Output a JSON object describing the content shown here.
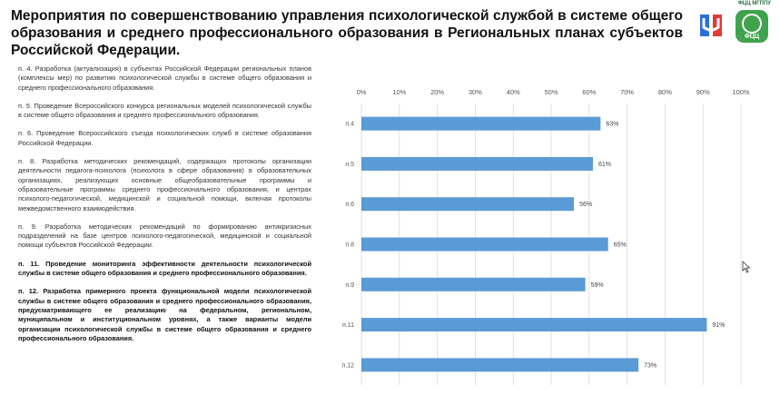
{
  "header": {
    "title": "Мероприятия по совершенствованию управления психологической службой в системе общего образования и среднего профессионального образования в Региональных планах субъектов Российской Федерации.",
    "logo_caption": "ФЦЦ МГППУ",
    "logo2_text": "ФЦЦ"
  },
  "items": [
    {
      "text": "п. 4. Разработка (актуализация) в субъектах Российской Федерации региональных планов (комплексы мер) по развитию психологической службы в системе общего образования и среднего профессионального образования.",
      "bold": false
    },
    {
      "text": "п. 5. Проведение Всероссийского конкурса региональных моделей психологической службы в системе общего образования и среднего профессионального образования.",
      "bold": false
    },
    {
      "text": "п. 6. Проведение Всероссийского съезда психологических служб в системе образования Российской Федерации.",
      "bold": false
    },
    {
      "text": "п. 8. Разработка методических рекомендаций, содержащих протоколы организации деятельности педагога-психолога (психолога в сфере образования) в образовательных организациях, реализующих основные общеобразовательные программы и образовательные программы среднего профессионального образования, и центрах психолого-педагогической, медицинской и социальной помощи, включая протоколы межведомственного взаимодействия.",
      "bold": false
    },
    {
      "text": "п. 9. Разработка методических рекомендаций по формированию антикризисных подразделений на базе центров психолого-педагогической, медицинской и социальной помощи субъектов Российской Федерации.",
      "bold": false
    },
    {
      "text": "п. 11. Проведение мониторинга эффективности деятельности психологической службы в системе общего образования и среднего профессионального образования.",
      "bold": true
    },
    {
      "text": "п. 12. Разработка примерного проекта функциональной модели психологической службы в системе общего образования и среднего профессионального образования, предусматривающего ее реализацию на федеральном, региональном, муниципальном и институциональном уровнях, а также варианты модели организации психологической службы в системе общего образования и среднего профессионального образования.",
      "bold": true
    }
  ],
  "chart_data": {
    "type": "bar",
    "orientation": "horizontal",
    "categories": [
      "п.4",
      "п.5",
      "п.6",
      "п.8",
      "п.9",
      "п.11",
      "п.12"
    ],
    "values": [
      63,
      61,
      56,
      65,
      59,
      91,
      73
    ],
    "value_labels": [
      "63%",
      "61%",
      "56%",
      "65%",
      "59%",
      "91%",
      "73%"
    ],
    "xlim": [
      0,
      100
    ],
    "ticks": [
      "0%",
      "10%",
      "20%",
      "30%",
      "40%",
      "50%",
      "60%",
      "70%",
      "80%",
      "90%",
      "100%"
    ],
    "xaxis_position": "top",
    "grid": true,
    "bar_color": "#5b9bd5",
    "title": "",
    "xlabel": "",
    "ylabel": ""
  }
}
